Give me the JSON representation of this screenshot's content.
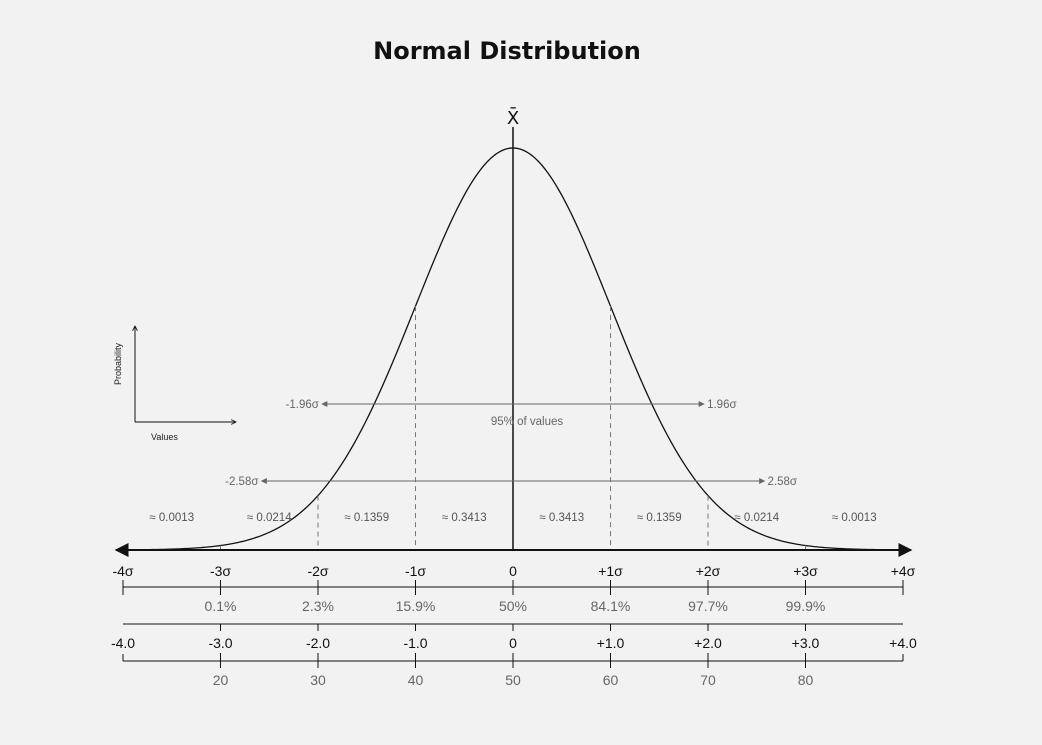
{
  "title": "Normal Distribution",
  "mean_symbol": "X̄",
  "legend": {
    "y_label": "Probability",
    "x_label": "Values"
  },
  "chart_data": {
    "type": "line",
    "title": "Normal Distribution",
    "xlim": [
      -4,
      4
    ],
    "curve": "standard normal density",
    "sigma_labels": [
      "-4σ",
      "-3σ",
      "-2σ",
      "-1σ",
      "0",
      "+1σ",
      "+2σ",
      "+3σ",
      "+4σ"
    ],
    "cumulative_percent": [
      {
        "x": -3,
        "label": "0.1%"
      },
      {
        "x": -2,
        "label": "2.3%"
      },
      {
        "x": -1,
        "label": "15.9%"
      },
      {
        "x": 0,
        "label": "50%"
      },
      {
        "x": 1,
        "label": "84.1%"
      },
      {
        "x": 2,
        "label": "97.7%"
      },
      {
        "x": 3,
        "label": "99.9%"
      }
    ],
    "z_scores": [
      "-4.0",
      "-3.0",
      "-2.0",
      "-1.0",
      "0",
      "+1.0",
      "+2.0",
      "+3.0",
      "+4.0"
    ],
    "scores": [
      {
        "x": -3,
        "label": "20"
      },
      {
        "x": -2,
        "label": "30"
      },
      {
        "x": -1,
        "label": "40"
      },
      {
        "x": 0,
        "label": "50"
      },
      {
        "x": 1,
        "label": "60"
      },
      {
        "x": 2,
        "label": "70"
      },
      {
        "x": 3,
        "label": "80"
      }
    ],
    "areas": [
      {
        "x": -3.5,
        "label": "≈ 0.0013"
      },
      {
        "x": -2.5,
        "label": "≈ 0.0214"
      },
      {
        "x": -1.5,
        "label": "≈ 0.1359"
      },
      {
        "x": -0.5,
        "label": "≈ 0.3413"
      },
      {
        "x": 0.5,
        "label": "≈ 0.3413"
      },
      {
        "x": 1.5,
        "label": "≈ 0.1359"
      },
      {
        "x": 2.5,
        "label": "≈ 0.0214"
      },
      {
        "x": 3.5,
        "label": "≈ 0.0013"
      }
    ],
    "intervals": [
      {
        "low": -1.96,
        "high": 1.96,
        "low_label": "-1.96σ",
        "high_label": "1.96σ",
        "caption": "95% of values"
      },
      {
        "low": -2.58,
        "high": 2.58,
        "low_label": "-2.58σ",
        "high_label": "2.58σ",
        "caption": ""
      }
    ]
  }
}
